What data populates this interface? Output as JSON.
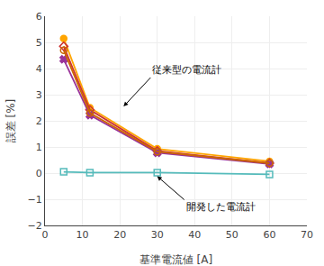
{
  "chart_data": {
    "type": "line",
    "xlabel": "基準電流値 [A]",
    "ylabel": "誤差 [%]",
    "x": [
      5,
      12,
      30,
      60
    ],
    "series": [
      {
        "color": "#FFA500",
        "marker": "circle",
        "values": [
          5.15,
          2.5,
          0.93,
          0.45
        ]
      },
      {
        "color": "#CC3333",
        "marker": "diamond-open",
        "values": [
          4.85,
          2.42,
          0.85,
          0.38
        ]
      },
      {
        "color": "#993399",
        "marker": "x",
        "values": [
          4.35,
          2.22,
          0.78,
          0.35
        ]
      },
      {
        "color": "#CC6600",
        "marker": "circle-open",
        "values": [
          4.7,
          2.3,
          0.82,
          0.38
        ]
      },
      {
        "color": "#55BBBB",
        "marker": "square-open",
        "values": [
          0.05,
          0.02,
          0.02,
          -0.05
        ]
      }
    ],
    "xlim": [
      0,
      70
    ],
    "xticks": [
      0,
      10,
      20,
      30,
      40,
      50,
      60,
      70
    ],
    "ylim": [
      -2,
      6
    ],
    "yticks": [
      -2,
      -1,
      0,
      1,
      2,
      3,
      4,
      5,
      6
    ],
    "annotations": [
      {
        "text": "従来型の電流計",
        "x": 21,
        "y": 2.55
      },
      {
        "text": "開発した電流計",
        "x": 30,
        "y": -0.12
      }
    ],
    "grid": true
  }
}
